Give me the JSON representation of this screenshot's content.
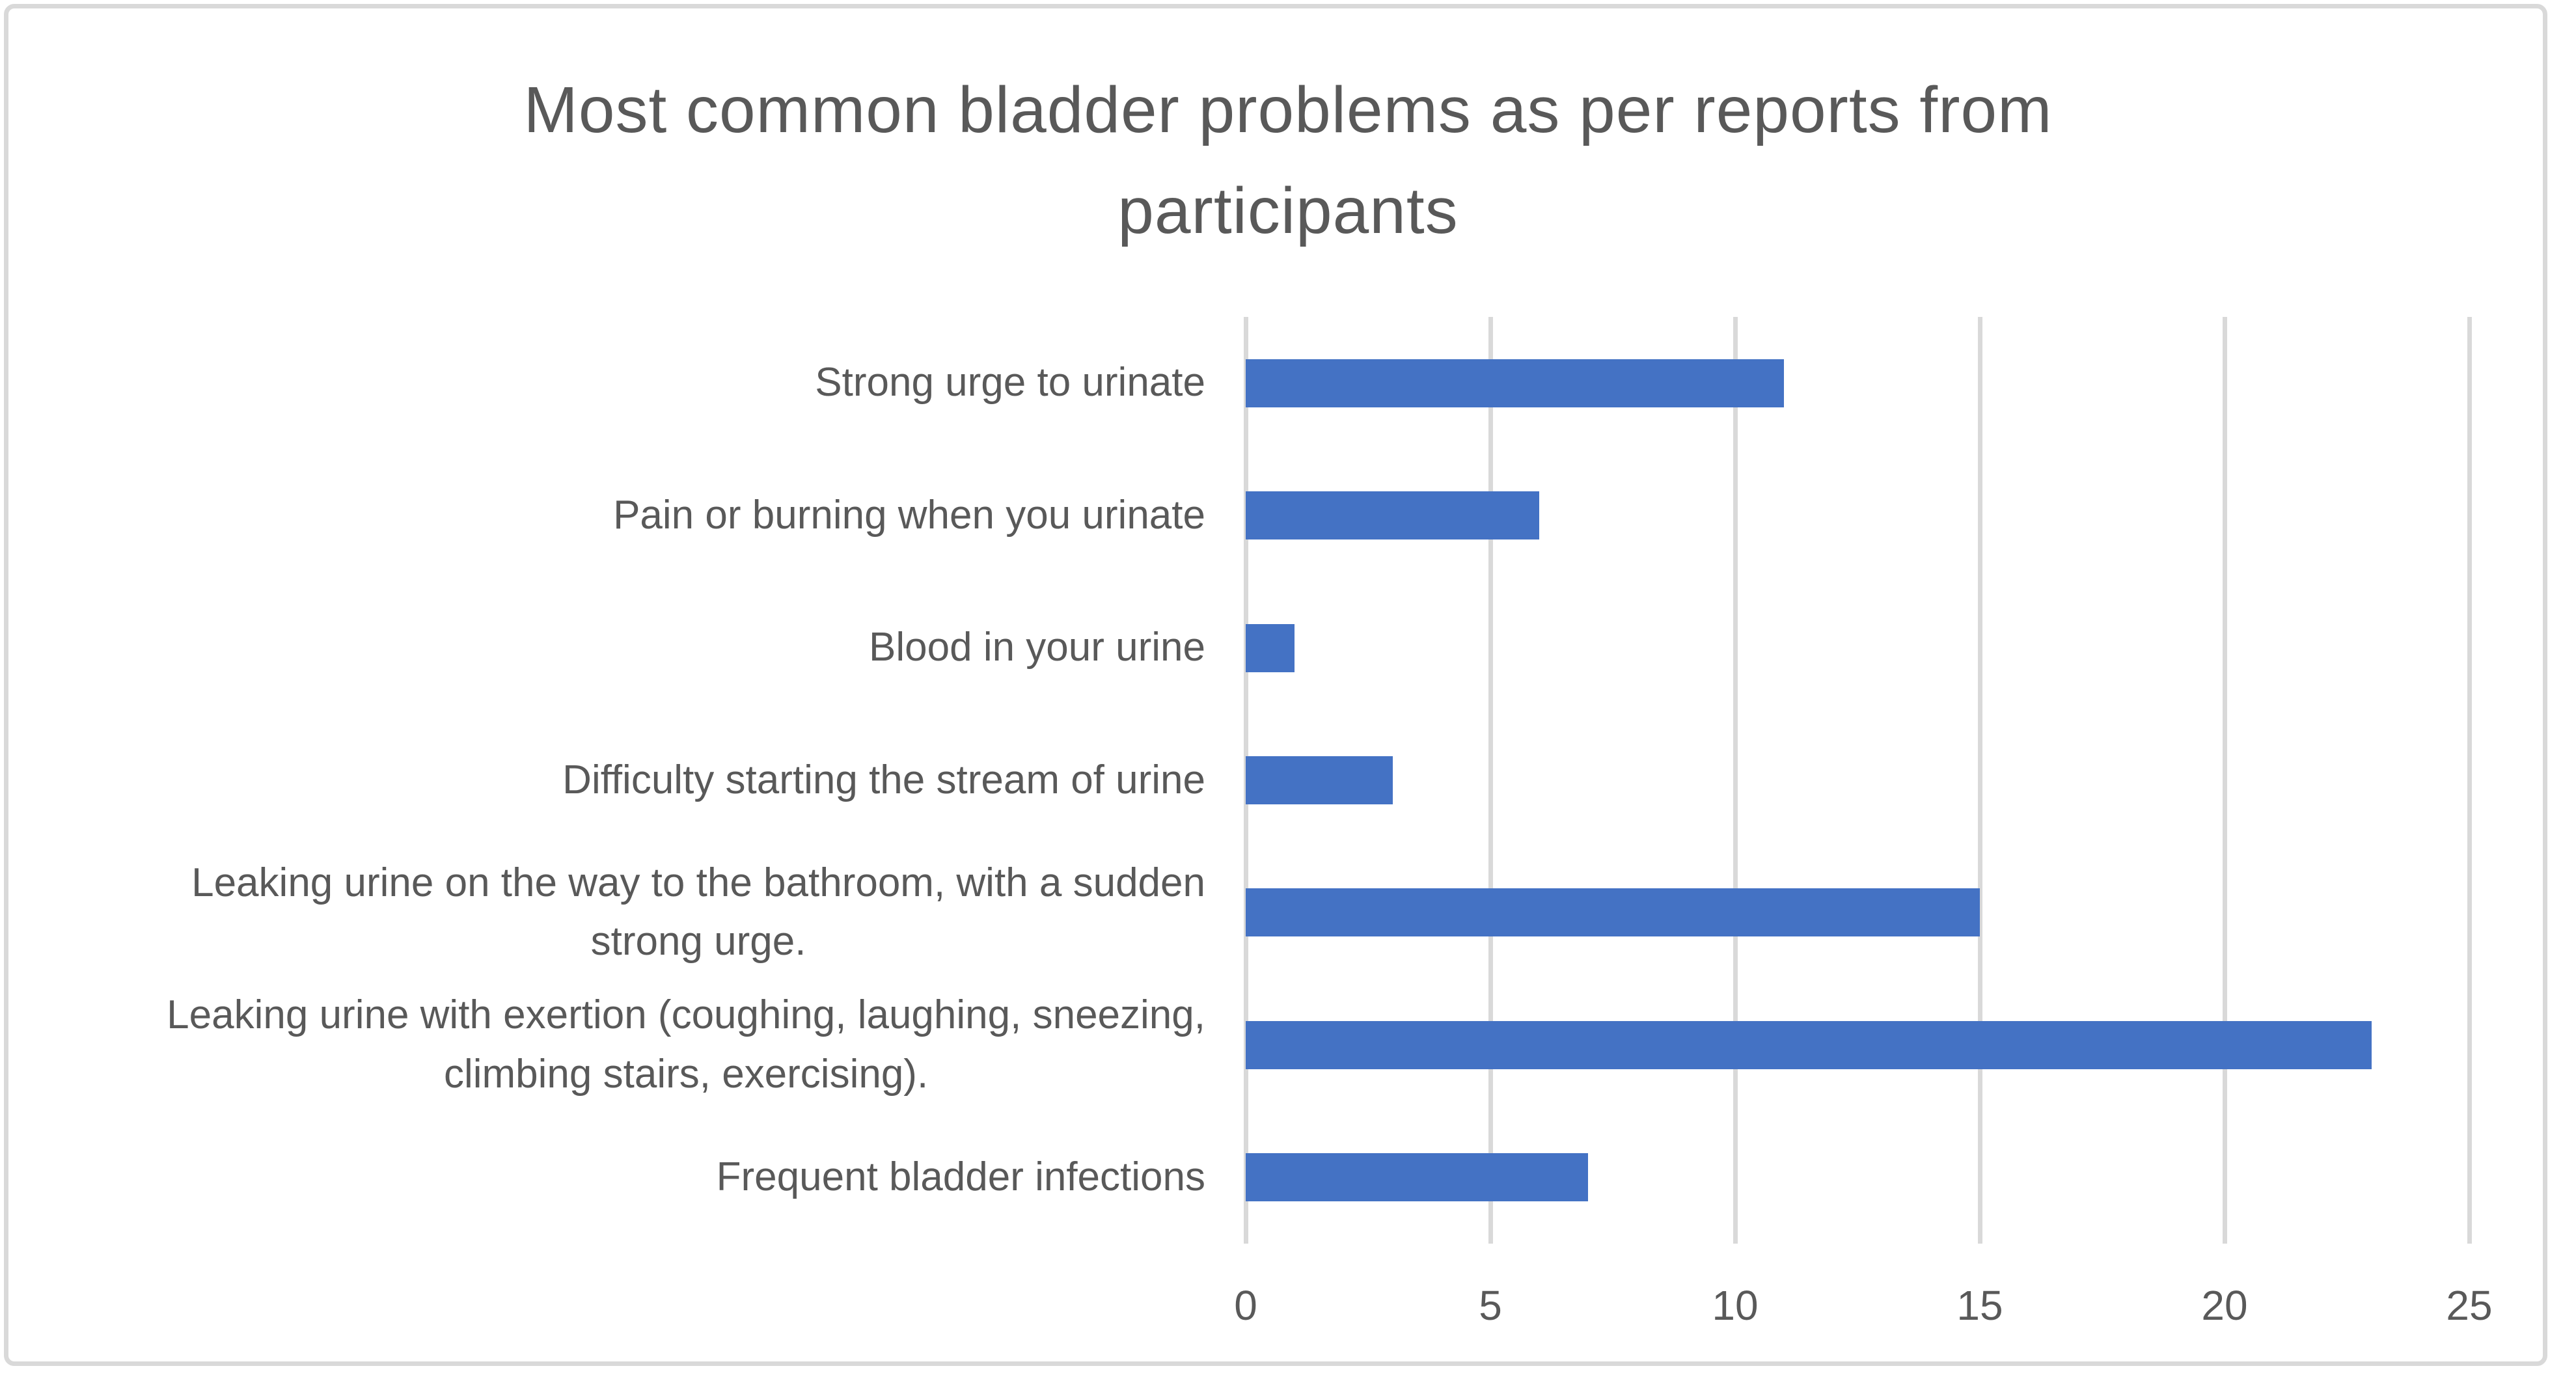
{
  "colors": {
    "bar": "#4472C4",
    "text": "#595959",
    "gridline": "#D9D9D9",
    "chart_border": "#D9D9D9",
    "background": "#FFFFFF"
  },
  "chart_data": {
    "type": "bar",
    "orientation": "horizontal",
    "title": "Most common bladder problems as per reports from\nparticipants",
    "categories": [
      "Strong urge to urinate",
      "Pain or burning when you urinate",
      "Blood in your urine",
      "Difficulty starting the stream of urine",
      "Leaking urine on the way to the bathroom, with a sudden\nstrong urge.",
      "Leaking urine with exertion (coughing, laughing, sneezing,\nclimbing stairs, exercising).",
      "Frequent bladder infections"
    ],
    "values": [
      11,
      6,
      1,
      3,
      15,
      23,
      7
    ],
    "xlabel": "",
    "ylabel": "",
    "xlim": [
      0,
      25
    ],
    "x_ticks": [
      "0",
      "5",
      "10",
      "15",
      "20",
      "25"
    ],
    "x_tick_values": [
      0,
      5,
      10,
      15,
      20,
      25
    ],
    "grid": true,
    "legend": false,
    "bar_color": "#4472C4"
  }
}
